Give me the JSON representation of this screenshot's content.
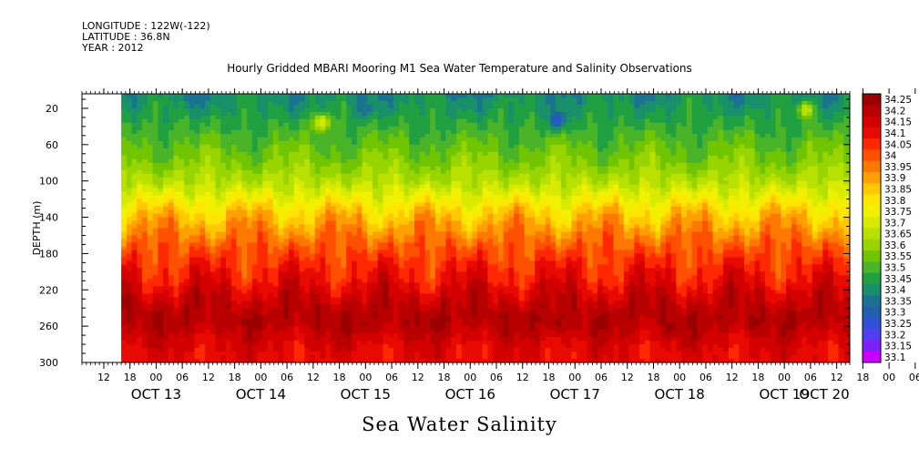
{
  "header": {
    "longitude": "LONGITUDE : 122W(-122)",
    "latitude": "LATITUDE : 36.8N",
    "year": "YEAR : 2012"
  },
  "chart_data": {
    "type": "heatmap",
    "title": "Hourly Gridded MBARI Mooring M1 Sea Water Temperature and Salinity Observations",
    "variable": "Sea Water Salinity",
    "ylabel": "DEPTH (m)",
    "ylim": [
      300,
      4
    ],
    "y_ticks": [
      20,
      60,
      100,
      140,
      180,
      220,
      260,
      300
    ],
    "x_hour_ticks": [
      "12",
      "18",
      "00",
      "06",
      "12",
      "18",
      "00",
      "06",
      "12",
      "18",
      "00",
      "06",
      "12",
      "18",
      "00",
      "06",
      "12",
      "18",
      "00",
      "06",
      "12",
      "18",
      "00",
      "06",
      "12",
      "18",
      "00",
      "06",
      "12",
      "18",
      "00",
      "06"
    ],
    "x_date_labels": [
      "OCT 13",
      "OCT 14",
      "OCT 15",
      "OCT 16",
      "OCT 17",
      "OCT 18",
      "OCT 19",
      "OCT 20"
    ],
    "x_start_hour": 7,
    "x_end_hour": 183,
    "data_start_hour": 16,
    "colorbar": {
      "labels": [
        "34.25",
        "34.2",
        "34.15",
        "34.1",
        "34.05",
        "34",
        "33.95",
        "33.9",
        "33.85",
        "33.8",
        "33.75",
        "33.7",
        "33.65",
        "33.6",
        "33.55",
        "33.5",
        "33.45",
        "33.4",
        "33.35",
        "33.3",
        "33.25",
        "33.2",
        "33.15",
        "33.1"
      ],
      "colors": [
        "#9a0000",
        "#b80000",
        "#d40000",
        "#e80a00",
        "#ff2800",
        "#ff5000",
        "#ff7800",
        "#ffa000",
        "#ffc800",
        "#ffe600",
        "#f0f000",
        "#d8ea00",
        "#b8e000",
        "#98d400",
        "#70c400",
        "#4ab428",
        "#20a040",
        "#18906a",
        "#1a7490",
        "#2060b0",
        "#3050d8",
        "#5040f0",
        "#8020f8",
        "#c800ff"
      ]
    },
    "salinity_profile": {
      "depths": [
        4,
        20,
        40,
        60,
        80,
        100,
        110,
        120,
        130,
        140,
        150,
        160,
        170,
        180,
        190,
        200,
        210,
        220,
        230,
        240,
        250,
        260,
        270,
        280,
        290,
        300
      ],
      "values": [
        33.42,
        33.45,
        33.5,
        33.55,
        33.6,
        33.67,
        33.72,
        33.78,
        33.84,
        33.89,
        33.93,
        33.97,
        34.01,
        34.04,
        34.07,
        34.1,
        34.12,
        34.16,
        34.19,
        34.22,
        34.23,
        34.22,
        34.19,
        34.16,
        34.14,
        34.14
      ]
    },
    "anomalies": [
      {
        "hour": 62,
        "depth": 36,
        "value": 33.75
      },
      {
        "hour": 116,
        "depth": 33,
        "value": 33.25
      },
      {
        "hour": 173,
        "depth": 22,
        "value": 33.7
      },
      {
        "hour": 32,
        "depth": 8,
        "value": 33.35
      },
      {
        "hour": 72,
        "depth": 20,
        "value": 33.35
      },
      {
        "hour": 72,
        "depth": 258,
        "value": 34.26
      },
      {
        "hour": 89,
        "depth": 256,
        "value": 34.26
      },
      {
        "hour": 116,
        "depth": 257,
        "value": 34.26
      },
      {
        "hour": 142,
        "depth": 262,
        "value": 34.27
      },
      {
        "hour": 161,
        "depth": 258,
        "value": 34.26
      }
    ]
  }
}
